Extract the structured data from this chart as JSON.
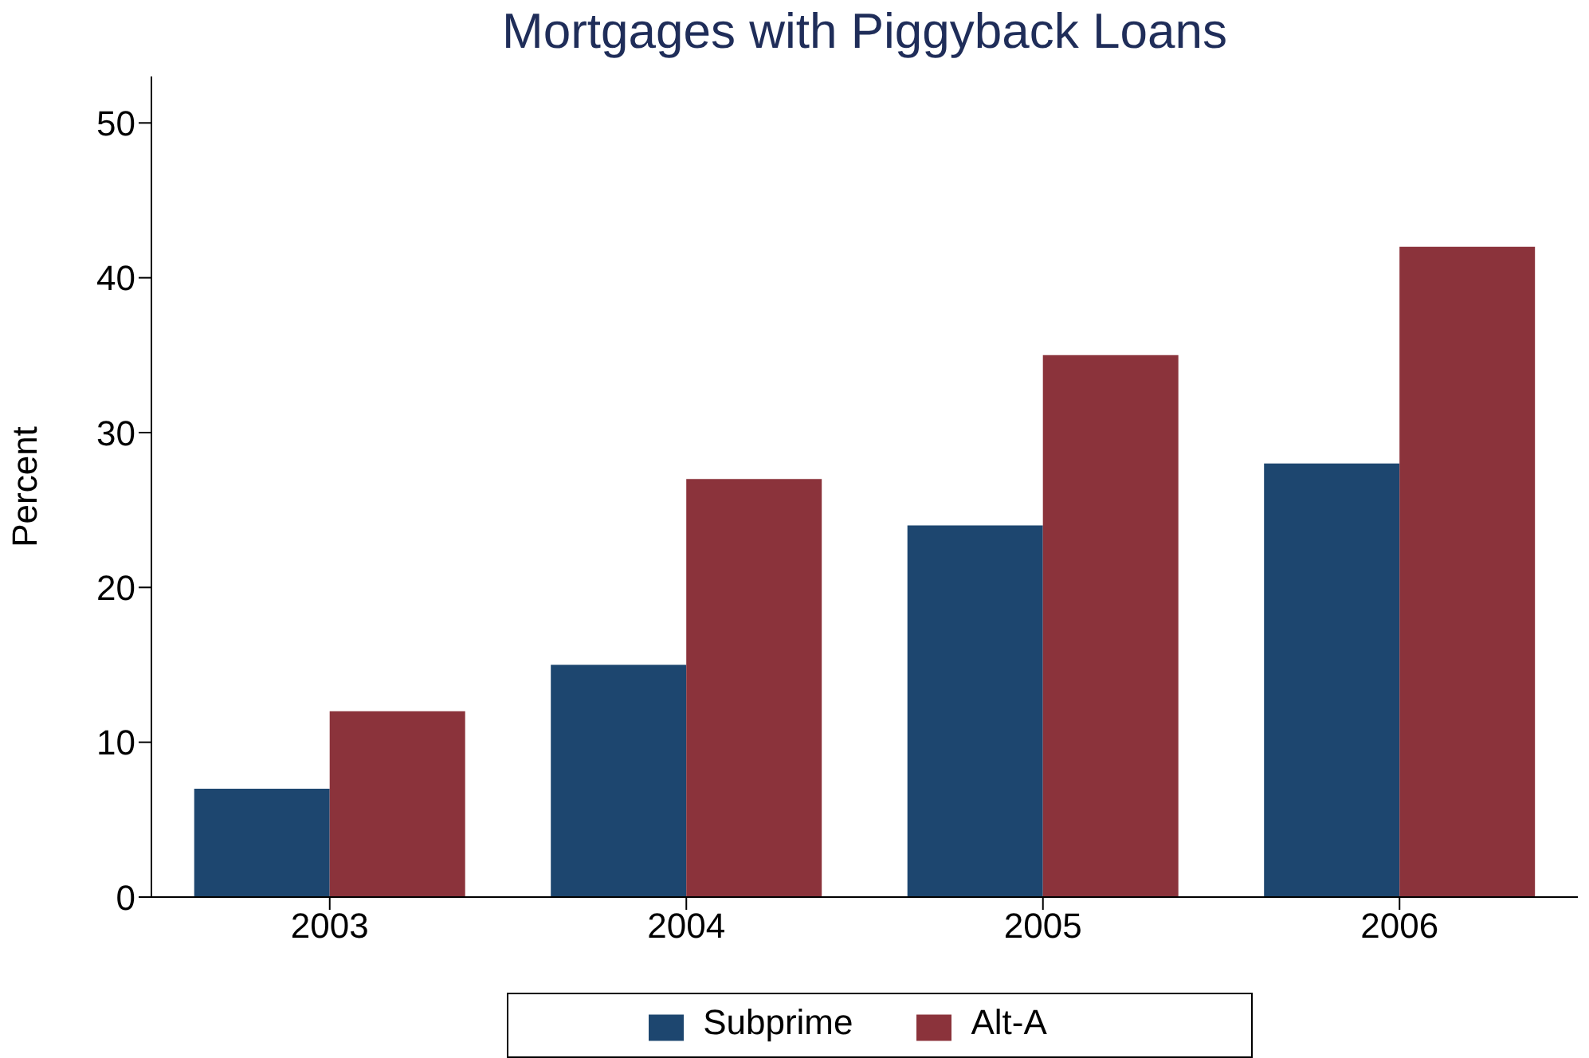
{
  "chart_data": {
    "type": "bar",
    "title": "Mortgages with Piggyback Loans",
    "ylabel": "Percent",
    "categories": [
      "2003",
      "2004",
      "2005",
      "2006"
    ],
    "series": [
      {
        "name": "Subprime",
        "color": "#1d466f",
        "values": [
          7,
          15,
          24,
          28
        ]
      },
      {
        "name": "Alt-A",
        "color": "#8b333b",
        "values": [
          12,
          27,
          35,
          42
        ]
      }
    ],
    "ylim": [
      0,
      53
    ],
    "yticks": [
      0,
      10,
      20,
      30,
      40,
      50
    ],
    "grid": false,
    "legend": "bottom"
  }
}
